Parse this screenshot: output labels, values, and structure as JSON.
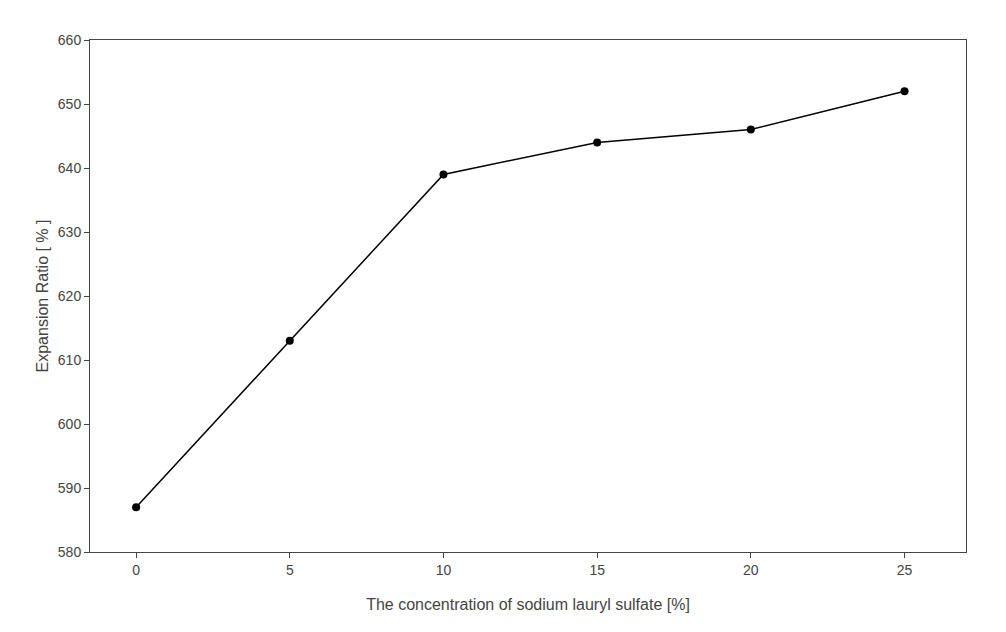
{
  "chart_data": {
    "type": "line",
    "x": [
      0,
      5,
      10,
      15,
      20,
      25
    ],
    "values": [
      587,
      613,
      639,
      644,
      646,
      652
    ],
    "xlabel": "The concentration of sodium lauryl sulfate [%]",
    "ylabel": "Expansion Ratio [ % ]",
    "xlim": [
      -1.5,
      27
    ],
    "ylim": [
      580,
      660
    ],
    "xticks": [
      0,
      5,
      10,
      15,
      20,
      25
    ],
    "yticks": [
      580,
      590,
      600,
      610,
      620,
      630,
      640,
      650,
      660
    ],
    "color": "#000000",
    "marker": "circle",
    "grid": false
  }
}
